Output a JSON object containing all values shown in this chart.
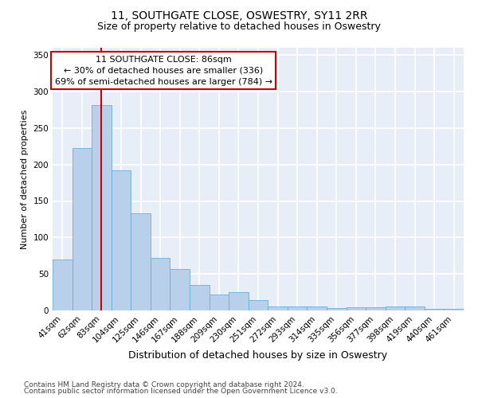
{
  "title_line1": "11, SOUTHGATE CLOSE, OSWESTRY, SY11 2RR",
  "title_line2": "Size of property relative to detached houses in Oswestry",
  "xlabel": "Distribution of detached houses by size in Oswestry",
  "ylabel": "Number of detached properties",
  "footer_line1": "Contains HM Land Registry data © Crown copyright and database right 2024.",
  "footer_line2": "Contains public sector information licensed under the Open Government Licence v3.0.",
  "categories": [
    "41sqm",
    "62sqm",
    "83sqm",
    "104sqm",
    "125sqm",
    "146sqm",
    "167sqm",
    "188sqm",
    "209sqm",
    "230sqm",
    "251sqm",
    "272sqm",
    "293sqm",
    "314sqm",
    "335sqm",
    "356sqm",
    "377sqm",
    "398sqm",
    "419sqm",
    "440sqm",
    "461sqm"
  ],
  "values": [
    70,
    222,
    281,
    192,
    133,
    72,
    57,
    35,
    22,
    25,
    14,
    5,
    6,
    6,
    3,
    4,
    4,
    5,
    5,
    2,
    2
  ],
  "bar_color": "#b8d0ea",
  "bar_edge_color": "#6aaed6",
  "background_color": "#e8eef8",
  "grid_color": "#ffffff",
  "vline_color": "#cc0000",
  "annotation_box_color": "#ffffff",
  "annotation_box_edge": "#cc0000",
  "annotation_text_line1": "11 SOUTHGATE CLOSE: 86sqm",
  "annotation_text_line2": "← 30% of detached houses are smaller (336)",
  "annotation_text_line3": "69% of semi-detached houses are larger (784) →",
  "vline_bin_index": 2,
  "ylim": [
    0,
    360
  ],
  "yticks": [
    0,
    50,
    100,
    150,
    200,
    250,
    300,
    350
  ],
  "fig_background": "#ffffff",
  "title_fontsize": 10,
  "subtitle_fontsize": 9,
  "xlabel_fontsize": 9,
  "ylabel_fontsize": 8,
  "tick_fontsize": 7.5,
  "annotation_fontsize": 8,
  "footer_fontsize": 6.5
}
